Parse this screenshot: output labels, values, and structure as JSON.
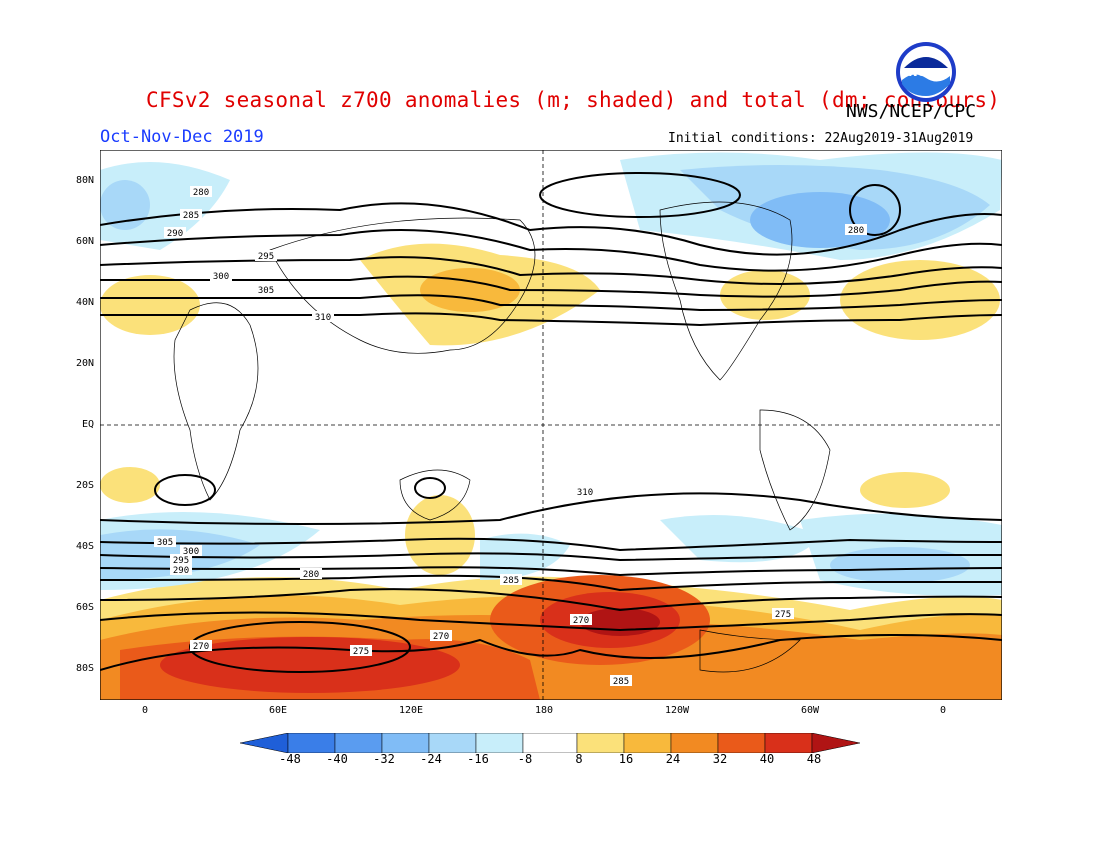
{
  "header": {
    "title": "CFSv2 seasonal z700 anomalies (m; shaded) and total (dm; contours)",
    "agency": "NWS/NCEP/CPC",
    "season": "Oct-Nov-Dec 2019",
    "init_conditions": "Initial conditions: 22Aug2019-31Aug2019",
    "logo_text": "NOAA"
  },
  "map": {
    "lat_labels": [
      "80N",
      "60N",
      "40N",
      "20N",
      "EQ",
      "20S",
      "40S",
      "60S",
      "80S"
    ],
    "lon_labels": [
      "0",
      "60E",
      "120E",
      "180",
      "120W",
      "60W",
      "0"
    ],
    "contour_labels_nh": [
      "280",
      "285",
      "290",
      "295",
      "300",
      "305",
      "310"
    ],
    "contour_labels_sh": [
      "310",
      "305",
      "300",
      "295",
      "290",
      "285",
      "280",
      "275",
      "270"
    ],
    "contour_labels_extra": [
      "280",
      "275",
      "270",
      "275",
      "285",
      "270"
    ]
  },
  "colorbar": {
    "labels": [
      "-48",
      "-40",
      "-32",
      "-24",
      "-16",
      "-8",
      "8",
      "16",
      "24",
      "32",
      "40",
      "48"
    ],
    "colors": [
      "#1f5fd8",
      "#3a7ee8",
      "#5a9cf0",
      "#80bcf6",
      "#a8d8f8",
      "#c8eefa",
      "#ffffff",
      "#fbe17a",
      "#f8b93c",
      "#f28a22",
      "#ea5a1a",
      "#d9301a",
      "#b01414"
    ]
  }
}
